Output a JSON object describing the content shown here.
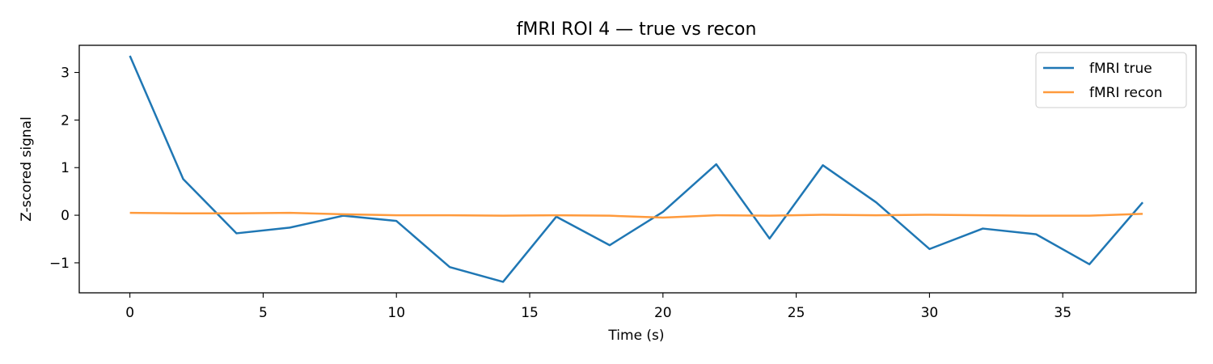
{
  "chart_data": {
    "type": "line",
    "title": "fMRI ROI 4 — true vs recon",
    "xlabel": "Time (s)",
    "ylabel": "Z-scored signal",
    "xlim": [
      -1.9,
      40.0
    ],
    "ylim": [
      -1.63,
      3.57
    ],
    "xticks": [
      0,
      5,
      10,
      15,
      20,
      25,
      30,
      35
    ],
    "xtick_labels": [
      "0",
      "5",
      "10",
      "15",
      "20",
      "25",
      "30",
      "35"
    ],
    "yticks": [
      -1,
      0,
      1,
      2,
      3
    ],
    "ytick_labels": [
      "−1",
      "0",
      "1",
      "2",
      "3"
    ],
    "grid": false,
    "legend_position": "upper right",
    "x": [
      0,
      2,
      4,
      6,
      8,
      10,
      12,
      14,
      16,
      18,
      20,
      22,
      24,
      26,
      28,
      30,
      32,
      34,
      36,
      38
    ],
    "series": [
      {
        "name": "fMRI true",
        "color": "#1f77b4",
        "values": [
          3.35,
          0.76,
          -0.38,
          -0.26,
          -0.01,
          -0.12,
          -1.09,
          -1.4,
          -0.03,
          -0.63,
          0.07,
          1.07,
          -0.49,
          1.05,
          0.27,
          -0.71,
          -0.28,
          -0.4,
          -1.03,
          0.27
        ]
      },
      {
        "name": "fMRI recon",
        "color": "#ff9a3c",
        "values": [
          0.05,
          0.04,
          0.04,
          0.05,
          0.02,
          0.0,
          0.0,
          -0.01,
          0.0,
          -0.01,
          -0.05,
          0.0,
          -0.01,
          0.01,
          0.0,
          0.01,
          0.0,
          -0.01,
          -0.01,
          0.03
        ]
      }
    ]
  }
}
